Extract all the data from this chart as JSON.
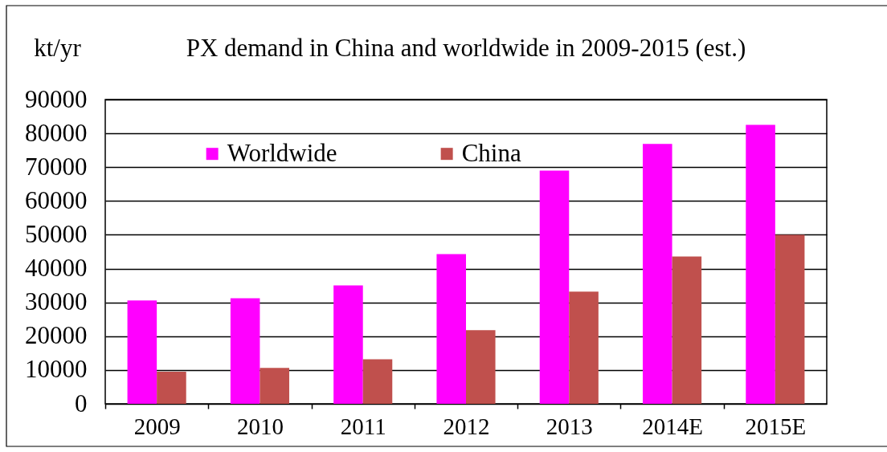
{
  "chart_data": {
    "type": "bar",
    "title": "PX demand in China and worldwide in 2009-2015 (est.)",
    "ylabel": "kt/yr",
    "categories": [
      "2009",
      "2010",
      "2011",
      "2012",
      "2013",
      "2014E",
      "2015E"
    ],
    "series": [
      {
        "name": "Worldwide",
        "color": "#ff00ff",
        "values": [
          30600,
          31200,
          35000,
          44300,
          69000,
          76900,
          82500
        ]
      },
      {
        "name": "China",
        "color": "#c0504d",
        "values": [
          9500,
          10600,
          13200,
          21800,
          33200,
          43600,
          50000
        ]
      }
    ],
    "ylim": [
      0,
      90000
    ],
    "yticks": [
      0,
      10000,
      20000,
      30000,
      40000,
      50000,
      60000,
      70000,
      80000,
      90000
    ],
    "grid": "y",
    "legend": "top left"
  }
}
